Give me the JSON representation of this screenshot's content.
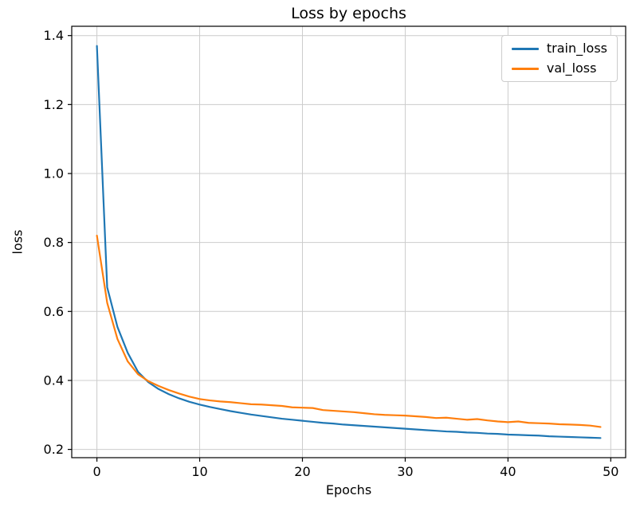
{
  "chart_data": {
    "type": "line",
    "title": "Loss by epochs",
    "xlabel": "Epochs",
    "ylabel": "loss",
    "grid": true,
    "grid_color": "#cccccc",
    "legend_position": "upper right",
    "xlim": [
      -2.45,
      51.45
    ],
    "ylim": [
      0.176,
      1.427
    ],
    "xticks": [
      0,
      10,
      20,
      30,
      40,
      50
    ],
    "xtick_labels": [
      "0",
      "10",
      "20",
      "30",
      "40",
      "50"
    ],
    "yticks": [
      0.2,
      0.4,
      0.6,
      0.8,
      1.0,
      1.2,
      1.4
    ],
    "ytick_labels": [
      "0.2",
      "0.4",
      "0.6",
      "0.8",
      "1.0",
      "1.2",
      "1.4"
    ],
    "x": [
      0,
      1,
      2,
      3,
      4,
      5,
      6,
      7,
      8,
      9,
      10,
      11,
      12,
      13,
      14,
      15,
      16,
      17,
      18,
      19,
      20,
      21,
      22,
      23,
      24,
      25,
      26,
      27,
      28,
      29,
      30,
      31,
      32,
      33,
      34,
      35,
      36,
      37,
      38,
      39,
      40,
      41,
      42,
      43,
      44,
      45,
      46,
      47,
      48,
      49
    ],
    "series": [
      {
        "name": "train_loss",
        "color": "#1f77b4",
        "values": [
          1.37,
          0.67,
          0.555,
          0.48,
          0.425,
          0.395,
          0.375,
          0.36,
          0.348,
          0.338,
          0.33,
          0.323,
          0.317,
          0.311,
          0.306,
          0.301,
          0.297,
          0.293,
          0.289,
          0.286,
          0.283,
          0.28,
          0.277,
          0.275,
          0.272,
          0.27,
          0.268,
          0.266,
          0.264,
          0.262,
          0.26,
          0.258,
          0.256,
          0.254,
          0.252,
          0.251,
          0.249,
          0.248,
          0.246,
          0.245,
          0.243,
          0.242,
          0.241,
          0.24,
          0.238,
          0.237,
          0.236,
          0.235,
          0.234,
          0.233
        ]
      },
      {
        "name": "val_loss",
        "color": "#ff7f0e",
        "values": [
          0.82,
          0.625,
          0.52,
          0.455,
          0.418,
          0.398,
          0.384,
          0.372,
          0.362,
          0.353,
          0.346,
          0.342,
          0.339,
          0.337,
          0.334,
          0.331,
          0.33,
          0.328,
          0.326,
          0.322,
          0.321,
          0.32,
          0.314,
          0.312,
          0.31,
          0.308,
          0.305,
          0.302,
          0.3,
          0.299,
          0.298,
          0.296,
          0.294,
          0.291,
          0.292,
          0.289,
          0.286,
          0.288,
          0.284,
          0.281,
          0.279,
          0.281,
          0.277,
          0.276,
          0.275,
          0.273,
          0.272,
          0.271,
          0.269,
          0.265
        ]
      }
    ]
  }
}
